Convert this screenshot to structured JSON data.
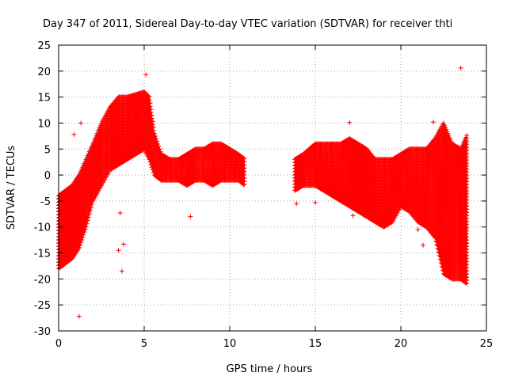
{
  "chart_data": {
    "type": "scatter",
    "title": "Day 347 of 2011, Sidereal Day-to-day VTEC variation (SDTVAR) for receiver thti",
    "xlabel": "GPS time / hours",
    "ylabel": "SDTVAR / TECUs",
    "xlim": [
      0,
      25
    ],
    "ylim": [
      -30,
      25
    ],
    "xticks": [
      0,
      5,
      10,
      15,
      20,
      25
    ],
    "yticks": [
      -30,
      -25,
      -20,
      -15,
      -10,
      -5,
      0,
      5,
      10,
      15,
      20,
      25
    ],
    "grid": true,
    "marker": "+",
    "color": "#ff0000",
    "series": [
      {
        "name": "SDTVAR",
        "envelope": [
          {
            "x": 0.0,
            "low": -18,
            "high": -4
          },
          {
            "x": 0.4,
            "low": -17,
            "high": -3
          },
          {
            "x": 0.8,
            "low": -16,
            "high": -2
          },
          {
            "x": 1.2,
            "low": -14,
            "high": 0
          },
          {
            "x": 1.6,
            "low": -10,
            "high": 3
          },
          {
            "x": 2.0,
            "low": -5,
            "high": 6
          },
          {
            "x": 2.5,
            "low": -2,
            "high": 10
          },
          {
            "x": 3.0,
            "low": 1,
            "high": 13
          },
          {
            "x": 3.5,
            "low": 2,
            "high": 15
          },
          {
            "x": 4.0,
            "low": 3,
            "high": 15
          },
          {
            "x": 4.5,
            "low": 4,
            "high": 15.5
          },
          {
            "x": 5.0,
            "low": 5,
            "high": 16
          },
          {
            "x": 5.3,
            "low": 3,
            "high": 15
          },
          {
            "x": 5.6,
            "low": 0,
            "high": 8
          },
          {
            "x": 6.0,
            "low": -1,
            "high": 4
          },
          {
            "x": 6.5,
            "low": -1,
            "high": 3
          },
          {
            "x": 7.0,
            "low": -1,
            "high": 3
          },
          {
            "x": 7.5,
            "low": -2,
            "high": 4
          },
          {
            "x": 8.0,
            "low": -1,
            "high": 5
          },
          {
            "x": 8.5,
            "low": -1,
            "high": 5
          },
          {
            "x": 9.0,
            "low": -2,
            "high": 6
          },
          {
            "x": 9.5,
            "low": -1,
            "high": 6
          },
          {
            "x": 10.0,
            "low": -1,
            "high": 5
          },
          {
            "x": 10.5,
            "low": -1,
            "high": 4
          },
          {
            "x": 10.9,
            "low": -2,
            "high": 3
          },
          {
            "x": 13.8,
            "low": -3,
            "high": 3
          },
          {
            "x": 14.3,
            "low": -2,
            "high": 4
          },
          {
            "x": 15.0,
            "low": -2,
            "high": 6
          },
          {
            "x": 15.5,
            "low": -3,
            "high": 6
          },
          {
            "x": 16.0,
            "low": -4,
            "high": 6
          },
          {
            "x": 16.5,
            "low": -5,
            "high": 6
          },
          {
            "x": 17.0,
            "low": -6,
            "high": 7
          },
          {
            "x": 17.5,
            "low": -7,
            "high": 6
          },
          {
            "x": 18.0,
            "low": -8,
            "high": 5
          },
          {
            "x": 18.5,
            "low": -9,
            "high": 3
          },
          {
            "x": 19.0,
            "low": -10,
            "high": 3
          },
          {
            "x": 19.5,
            "low": -9,
            "high": 3
          },
          {
            "x": 20.0,
            "low": -6,
            "high": 4
          },
          {
            "x": 20.5,
            "low": -7,
            "high": 5
          },
          {
            "x": 21.0,
            "low": -9,
            "high": 5
          },
          {
            "x": 21.5,
            "low": -10,
            "high": 5
          },
          {
            "x": 22.0,
            "low": -12,
            "high": 7
          },
          {
            "x": 22.5,
            "low": -19,
            "high": 10
          },
          {
            "x": 23.0,
            "low": -20,
            "high": 6
          },
          {
            "x": 23.5,
            "low": -20,
            "high": 5
          },
          {
            "x": 23.9,
            "low": -21,
            "high": 8
          }
        ],
        "outliers": [
          {
            "x": 1.2,
            "y": -27.2
          },
          {
            "x": 3.7,
            "y": -18.5
          },
          {
            "x": 3.5,
            "y": -14.5
          },
          {
            "x": 3.8,
            "y": -13.3
          },
          {
            "x": 0.9,
            "y": 7.8
          },
          {
            "x": 1.3,
            "y": 10.0
          },
          {
            "x": 3.6,
            "y": -7.3
          },
          {
            "x": 7.7,
            "y": -8.0
          },
          {
            "x": 5.1,
            "y": 19.3
          },
          {
            "x": 17.0,
            "y": 10.1
          },
          {
            "x": 23.5,
            "y": 20.6
          },
          {
            "x": 21.0,
            "y": -10.5
          },
          {
            "x": 21.9,
            "y": 10.2
          },
          {
            "x": 21.3,
            "y": -13.5
          },
          {
            "x": 15.0,
            "y": -5.3
          },
          {
            "x": 17.2,
            "y": -7.8
          },
          {
            "x": 13.9,
            "y": -5.5
          }
        ]
      }
    ]
  }
}
